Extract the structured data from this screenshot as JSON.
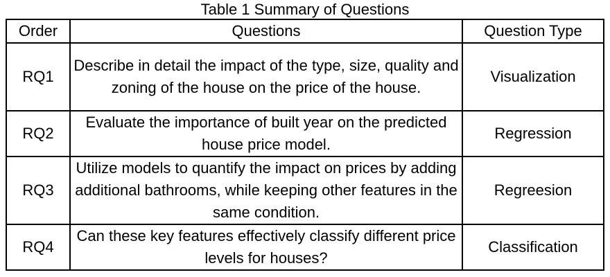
{
  "caption": "Table 1 Summary of Questions",
  "table": {
    "headers": [
      "Order",
      "Questions",
      "Question Type"
    ],
    "rows": [
      {
        "order": "RQ1",
        "question": "Describe in detail the impact of the type, size, quality and zoning of the house on the price of the house.",
        "type": "Visualization"
      },
      {
        "order": "RQ2",
        "question": "Evaluate the importance of built year on the predicted house price model.",
        "type": "Regression"
      },
      {
        "order": "RQ3",
        "question": "Utilize models to quantify the impact on prices by adding additional bathrooms, while keeping other features in the same condition.",
        "type": "Regreesion"
      },
      {
        "order": "RQ4",
        "question": "Can these key features effectively classify different price levels for houses?",
        "type": "Classification"
      }
    ]
  }
}
